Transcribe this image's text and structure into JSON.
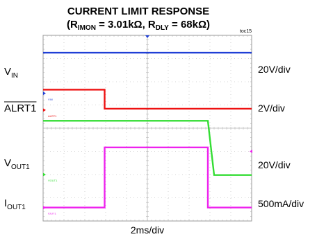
{
  "chart_data": {
    "type": "line",
    "title_line1": "CURRENT LIMIT RESPONSE",
    "title_line2": {
      "open": "(R",
      "rimon_sub": "IMON",
      "rimon_value": " = 3.01kΩ, R",
      "rdly_sub": "DLY",
      "rdly_value": " = 68kΩ)"
    },
    "figure_id": "toc15",
    "xlabel": "2ms/div",
    "x_divisions": 10,
    "y_divisions": 8,
    "xlim_div": [
      0,
      10
    ],
    "ylim_div": [
      0,
      8
    ],
    "grid": true,
    "trigger_marker": "top",
    "channels": [
      {
        "id": "vin",
        "label": "V",
        "label_sub": "IN",
        "scale": "20V/div",
        "trace_tag": "VIN",
        "color": "#1f3fd6",
        "ground_div": 5.5,
        "points": [
          [
            0,
            7.25
          ],
          [
            10,
            7.25
          ]
        ]
      },
      {
        "id": "alrt1",
        "label": "ALRT1",
        "overline": true,
        "scale": "2V/div",
        "trace_tag": "ALRT1",
        "color": "#ee1111",
        "ground_div": 4.78,
        "points": [
          [
            0,
            5.66
          ],
          [
            2.95,
            5.66
          ],
          [
            2.95,
            4.84
          ],
          [
            10,
            4.84
          ]
        ]
      },
      {
        "id": "vout1",
        "label": "V",
        "label_sub": "OUT1",
        "scale": "20V/div",
        "trace_tag": "VOUT1",
        "color": "#33dd33",
        "ground_div": 2.0,
        "points": [
          [
            0,
            4.32
          ],
          [
            7.9,
            4.32
          ],
          [
            8.2,
            1.98
          ],
          [
            10,
            1.98
          ]
        ]
      },
      {
        "id": "iout1",
        "label": "I",
        "label_sub": "OUT1",
        "scale": "500mA/div",
        "trace_tag": "IOUT1",
        "color": "#ee22ee",
        "ground_div": 0.58,
        "points": [
          [
            0,
            0.58
          ],
          [
            2.95,
            0.58
          ],
          [
            2.95,
            3.17
          ],
          [
            7.9,
            3.17
          ],
          [
            7.9,
            0.58
          ],
          [
            10,
            0.58
          ]
        ]
      }
    ]
  }
}
